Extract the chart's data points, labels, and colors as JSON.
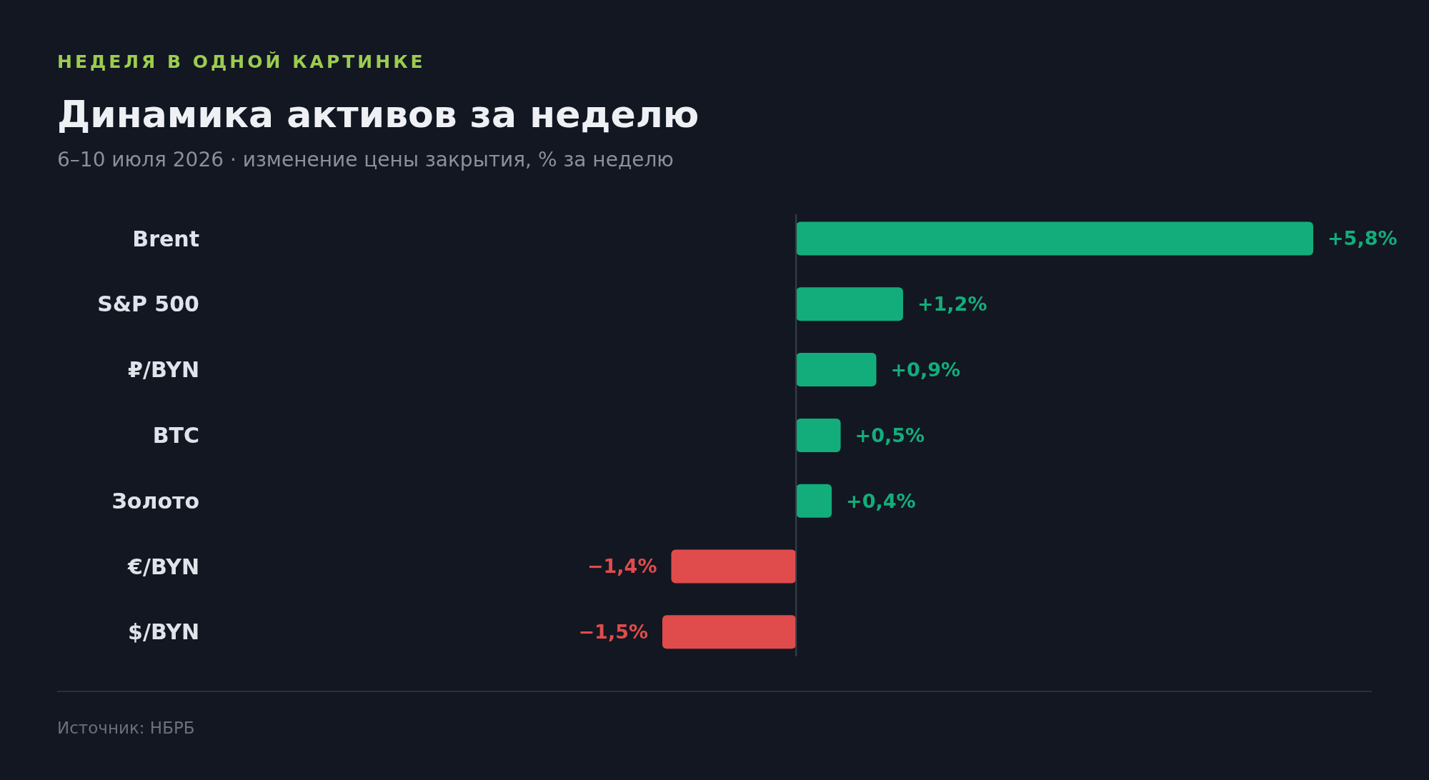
{
  "chart_data": {
    "type": "bar",
    "orientation": "horizontal",
    "title": "Динамика активов за неделю",
    "subtitle": "6–10 июля 2026 · изменение цены закрытия, % за неделю",
    "annotations": [
      "НЕДЕЛЯ В ОДНОЙ КАРТИНКЕ",
      "Источник: НБРБ"
    ],
    "categories": [
      "Brent",
      "S&P 500",
      "₽/BYN",
      "BTC",
      "Золото",
      "€/BYN",
      "$/BYN"
    ],
    "values": [
      5.8,
      1.2,
      0.9,
      0.5,
      0.4,
      -1.4,
      -1.5
    ],
    "colors": [
      "#13ad7b",
      "#13ad7b",
      "#13ad7b",
      "#13ad7b",
      "#13ad7b",
      "#e04c4c",
      "#e04c4c"
    ],
    "ref_lines": [
      {
        "axis": "x",
        "value": 0,
        "color": "#3a404c"
      }
    ],
    "value_labels": [
      "+5,8%",
      "+1,2%",
      "+0,9%",
      "+0,5%",
      "+0,4%",
      "−1,4%",
      "−1,5%"
    ]
  }
}
